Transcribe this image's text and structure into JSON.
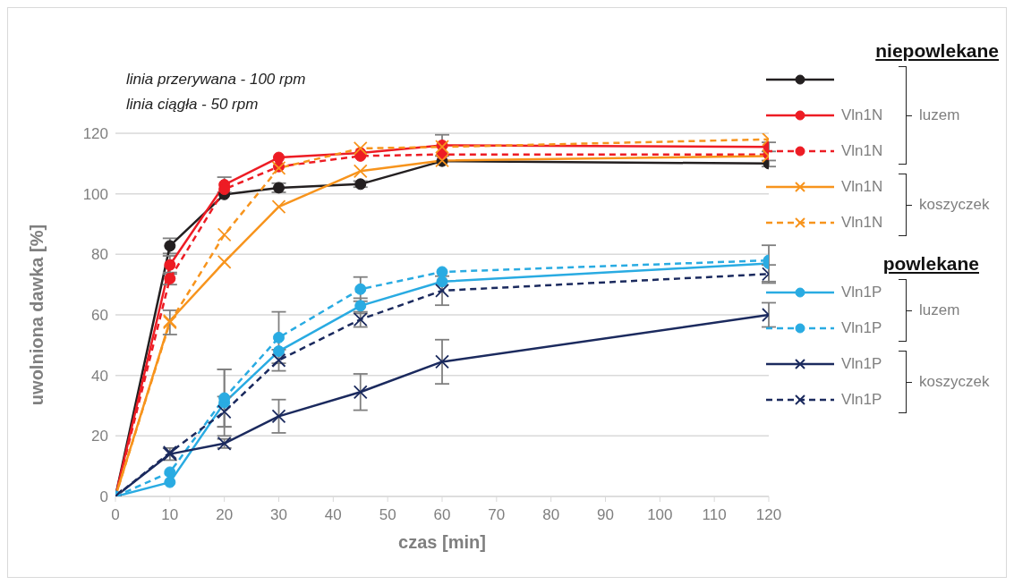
{
  "chart_data": {
    "type": "line",
    "xlabel": "czas [min]",
    "ylabel": "uwolniona dawka  [%]",
    "x": [
      0,
      10,
      20,
      30,
      45,
      60,
      120
    ],
    "xlim": [
      0,
      120
    ],
    "xticks": [
      0,
      10,
      20,
      30,
      40,
      50,
      60,
      70,
      80,
      90,
      100,
      110,
      120
    ],
    "ylim": [
      0,
      120
    ],
    "yticks": [
      0,
      20,
      40,
      60,
      80,
      100,
      120
    ],
    "grid": "y",
    "legend": "right",
    "annotations": [
      "linia przerywana - 100 rpm",
      "linia ciągła - 50 rpm",
      "niepowlekane",
      "luzem",
      "koszyczek",
      "powlekane",
      "luzem",
      "koszyczek"
    ],
    "series": [
      {
        "color": "#231f20",
        "marker": "circle",
        "line_style": "solid",
        "values": [
          0,
          82.8,
          99.8,
          102,
          103.2,
          110.8,
          110
        ],
        "errors": [
          null,
          2.5,
          null,
          1.5,
          1,
          null,
          1
        ]
      },
      {
        "name": "Vln1N",
        "color": "#ed1c24",
        "marker": "circle",
        "line_style": "solid",
        "values": [
          0,
          76.5,
          103,
          112,
          113.5,
          116,
          115.5
        ],
        "errors": [
          null,
          3,
          2.5,
          null,
          null,
          3.5,
          1.5
        ]
      },
      {
        "name": "Vln1N",
        "color": "#ed1c24",
        "marker": "circle",
        "line_style": "dashed",
        "values": [
          0,
          72,
          101.5,
          109,
          112.5,
          113,
          113
        ],
        "errors": [
          null,
          2,
          null,
          null,
          null,
          null,
          null
        ]
      },
      {
        "name": "Vln1N",
        "color": "#f7941d",
        "marker": "cross",
        "line_style": "solid",
        "values": [
          0,
          58,
          77.5,
          95.7,
          107.5,
          111,
          112.5
        ],
        "errors": [
          null,
          null,
          null,
          null,
          null,
          null,
          null
        ]
      },
      {
        "name": "Vln1N",
        "color": "#f7941d",
        "marker": "cross",
        "line_style": "dashed",
        "values": [
          0,
          57.5,
          86.5,
          108.5,
          115,
          115.5,
          118
        ],
        "errors": [
          null,
          4,
          null,
          null,
          null,
          null,
          null
        ]
      },
      {
        "name": "Vln1P",
        "color": "#29abe2",
        "marker": "circle",
        "line_style": "solid",
        "values": [
          0,
          4.7,
          31,
          48,
          63,
          71,
          77
        ],
        "errors": [
          null,
          null,
          11,
          null,
          2.5,
          null,
          6
        ]
      },
      {
        "name": "Vln1P",
        "color": "#29abe2",
        "marker": "circle",
        "line_style": "dashed",
        "values": [
          0,
          8,
          32.5,
          52.5,
          68.5,
          74.2,
          78
        ],
        "errors": [
          null,
          null,
          9.5,
          8.5,
          4,
          null,
          null
        ]
      },
      {
        "name": "Vln1P",
        "color": "#1b2a5e",
        "marker": "cross",
        "line_style": "solid",
        "values": [
          0,
          14,
          17.5,
          26.5,
          34.5,
          44.5,
          60
        ],
        "errors": [
          null,
          2,
          1.5,
          5.5,
          6,
          7.3,
          4
        ]
      },
      {
        "name": "Vln1P",
        "color": "#1b2a5e",
        "marker": "cross",
        "line_style": "dashed",
        "values": [
          0,
          14.5,
          28,
          45,
          58.5,
          68,
          73.5
        ],
        "errors": [
          null,
          null,
          5,
          3.5,
          2.5,
          4.8,
          3
        ]
      }
    ]
  }
}
